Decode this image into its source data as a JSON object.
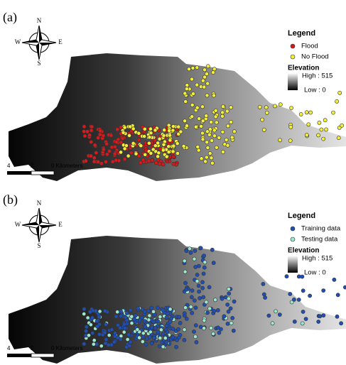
{
  "panels": [
    {
      "label": "(a)",
      "compass": {
        "n": "N",
        "e": "E",
        "s": "S",
        "w": "W"
      },
      "legend": {
        "title": "Legend",
        "items": [
          {
            "label": "Flood",
            "color": "#d7191c"
          },
          {
            "label": "No Flood",
            "color": "#f2ee3a"
          }
        ]
      },
      "elevation": {
        "title": "Elevation",
        "high": "High : 515",
        "low": "Low : 0"
      },
      "scale": [
        "4",
        "2",
        "0 Kilometers"
      ]
    },
    {
      "label": "(b)",
      "compass": {
        "n": "N",
        "e": "E",
        "s": "S",
        "w": "W"
      },
      "legend": {
        "title": "Legend",
        "items": [
          {
            "label": "Training data",
            "color": "#1f4fb4"
          },
          {
            "label": "Testing data",
            "color": "#9be8cf"
          }
        ]
      },
      "elevation": {
        "title": "Elevation",
        "high": "High : 515",
        "low": "Low : 0"
      },
      "scale": [
        "4",
        "2",
        "0 Kilometers"
      ]
    }
  ]
}
